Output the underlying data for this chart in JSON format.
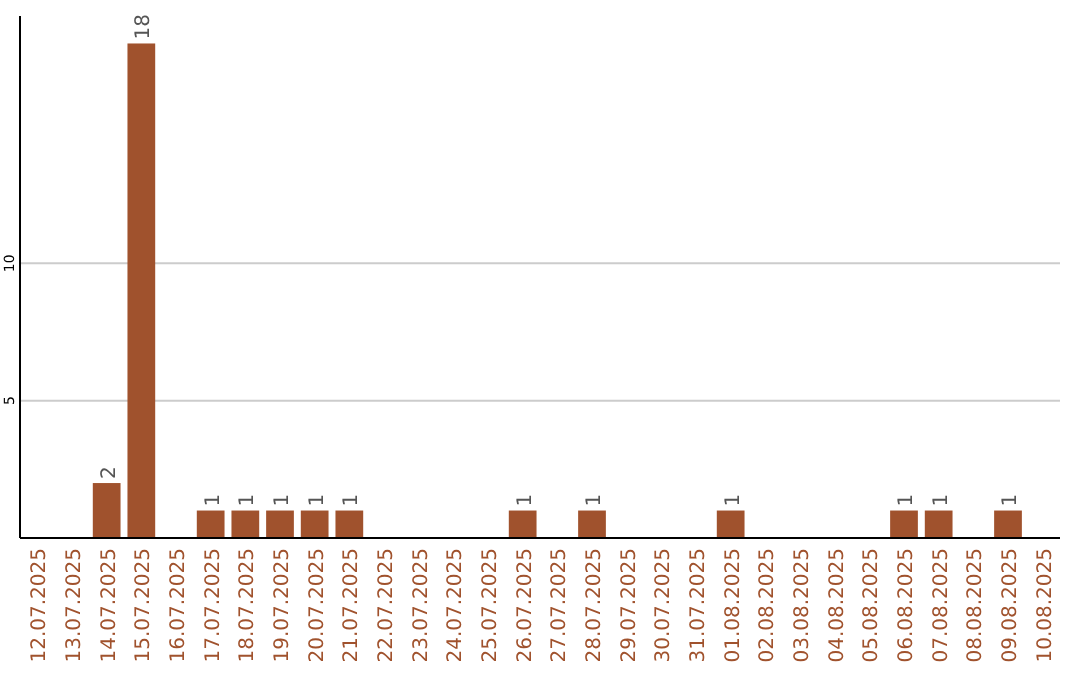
{
  "chart_data": {
    "type": "bar",
    "categories": [
      "12.07.2025",
      "13.07.2025",
      "14.07.2025",
      "15.07.2025",
      "16.07.2025",
      "17.07.2025",
      "18.07.2025",
      "19.07.2025",
      "20.07.2025",
      "21.07.2025",
      "22.07.2025",
      "23.07.2025",
      "24.07.2025",
      "25.07.2025",
      "26.07.2025",
      "27.07.2025",
      "28.07.2025",
      "29.07.2025",
      "30.07.2025",
      "31.07.2025",
      "01.08.2025",
      "02.08.2025",
      "03.08.2025",
      "04.08.2025",
      "05.08.2025",
      "06.08.2025",
      "07.08.2025",
      "08.08.2025",
      "09.08.2025",
      "10.08.2025"
    ],
    "values": [
      0,
      0,
      2,
      18,
      0,
      1,
      1,
      1,
      1,
      1,
      0,
      0,
      0,
      0,
      1,
      0,
      1,
      0,
      0,
      0,
      1,
      0,
      0,
      0,
      0,
      1,
      1,
      0,
      1,
      0
    ],
    "value_labels": [
      null,
      null,
      "2",
      "18",
      null,
      "1",
      "1",
      "1",
      "1",
      "1",
      null,
      null,
      null,
      null,
      "1",
      null,
      "1",
      null,
      null,
      null,
      "1",
      null,
      null,
      null,
      null,
      "1",
      "1",
      null,
      "1",
      null
    ],
    "color": "#a0522d",
    "ylim": [
      0,
      19
    ],
    "yticks": [
      5,
      10
    ],
    "grid": "y"
  }
}
